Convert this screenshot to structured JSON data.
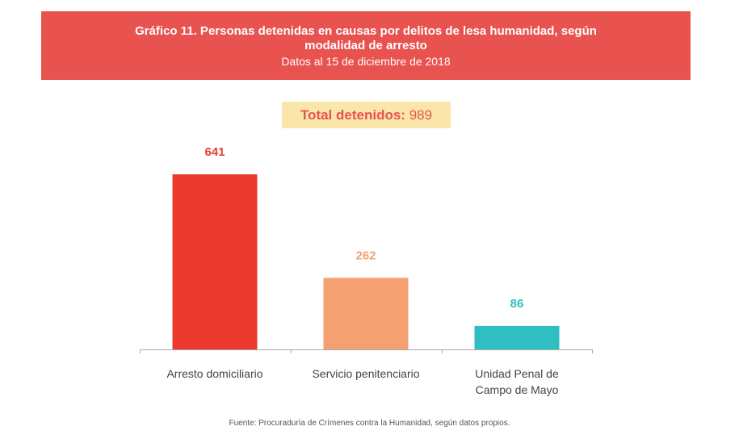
{
  "header": {
    "title": "Gráfico 11. Personas detenidas en causas por delitos de lesa humanidad, según modalidad de arresto",
    "subtitle": "Datos al 15 de diciembre de 2018"
  },
  "total": {
    "label": "Total detenidos:",
    "value": "989"
  },
  "source": "Fuente: Procuraduría de Crímenes contra la Humanidad, según datos propios.",
  "colors": {
    "banner": "#e8524f",
    "total_box": "#fbe6a9",
    "bar1": "#ec3b2e",
    "bar2": "#f5a070",
    "bar3": "#2fbfc3"
  },
  "chart_data": {
    "type": "bar",
    "categories": [
      "Arresto domiciliario",
      "Servicio penitenciario",
      "Unidad Penal de Campo de Mayo"
    ],
    "category_lines": [
      [
        "Arresto domiciliario"
      ],
      [
        "Servicio penitenciario"
      ],
      [
        "Unidad Penal de",
        "Campo de Mayo"
      ]
    ],
    "values": [
      641,
      262,
      86
    ],
    "data_labels": [
      "641",
      "262",
      "86"
    ],
    "bar_colors": [
      "#ec3b2e",
      "#f5a070",
      "#2fbfc3"
    ],
    "ylim": [
      0,
      641
    ],
    "grid": false,
    "title": "",
    "xlabel": "",
    "ylabel": ""
  }
}
